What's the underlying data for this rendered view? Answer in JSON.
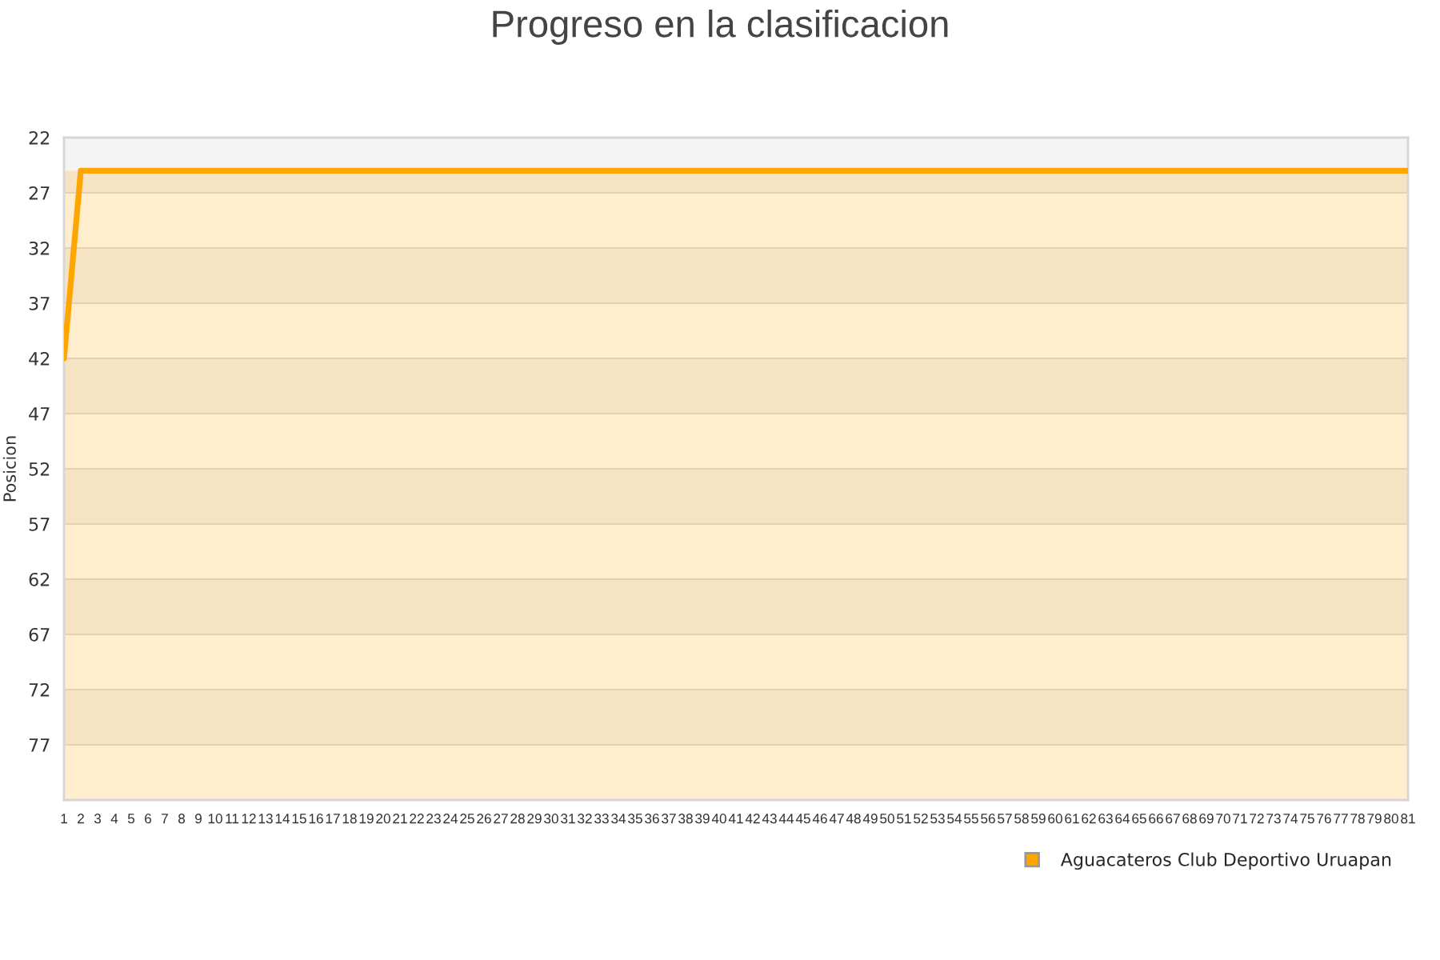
{
  "chart_data": {
    "type": "line",
    "title": "Progreso en la clasificacion",
    "ylabel": "Posicion",
    "x": [
      1,
      2,
      3,
      4,
      5,
      6,
      7,
      8,
      9,
      10,
      11,
      12,
      13,
      14,
      15,
      16,
      17,
      18,
      19,
      20,
      21,
      22,
      23,
      24,
      25,
      26,
      27,
      28,
      29,
      30,
      31,
      32,
      33,
      34,
      35,
      36,
      37,
      38,
      39,
      40,
      41,
      42,
      43,
      44,
      45,
      46,
      47,
      48,
      49,
      50,
      51,
      52,
      53,
      54,
      55,
      56,
      57,
      58,
      59,
      60,
      61,
      62,
      63,
      64,
      65,
      66,
      67,
      68,
      69,
      70,
      71,
      72,
      73,
      74,
      75,
      76,
      77,
      78,
      79,
      80,
      81
    ],
    "series": [
      {
        "name": "Aguacateros Club Deportivo Uruapan",
        "color": "#ffa500",
        "values": [
          42,
          25,
          25,
          25,
          25,
          25,
          25,
          25,
          25,
          25,
          25,
          25,
          25,
          25,
          25,
          25,
          25,
          25,
          25,
          25,
          25,
          25,
          25,
          25,
          25,
          25,
          25,
          25,
          25,
          25,
          25,
          25,
          25,
          25,
          25,
          25,
          25,
          25,
          25,
          25,
          25,
          25,
          25,
          25,
          25,
          25,
          25,
          25,
          25,
          25,
          25,
          25,
          25,
          25,
          25,
          25,
          25,
          25,
          25,
          25,
          25,
          25,
          25,
          25,
          25,
          25,
          25,
          25,
          25,
          25,
          25,
          25,
          25,
          25,
          25,
          25,
          25,
          25,
          25,
          25,
          25
        ]
      }
    ],
    "xlim": [
      1,
      81
    ],
    "xticks": [
      1,
      2,
      3,
      4,
      5,
      6,
      7,
      8,
      9,
      10,
      11,
      12,
      13,
      14,
      15,
      16,
      17,
      18,
      19,
      20,
      21,
      22,
      23,
      24,
      25,
      26,
      27,
      28,
      29,
      30,
      31,
      32,
      33,
      34,
      35,
      36,
      37,
      38,
      39,
      40,
      41,
      42,
      43,
      44,
      45,
      46,
      47,
      48,
      49,
      50,
      51,
      52,
      53,
      54,
      55,
      56,
      57,
      58,
      59,
      60,
      61,
      62,
      63,
      64,
      65,
      66,
      67,
      68,
      69,
      70,
      71,
      72,
      73,
      74,
      75,
      76,
      77,
      78,
      79,
      80,
      81
    ],
    "ylim": [
      82,
      22
    ],
    "yticks": [
      22,
      27,
      32,
      37,
      42,
      47,
      52,
      57,
      62,
      67,
      72,
      77
    ],
    "bands": [
      {
        "axis": "y",
        "from": 25,
        "to": 27,
        "color": "#f5e3c3"
      },
      {
        "axis": "y",
        "from": 27,
        "to": 32,
        "color": "#ffedcd"
      },
      {
        "axis": "y",
        "from": 32,
        "to": 37,
        "color": "#f5e3c3"
      },
      {
        "axis": "y",
        "from": 37,
        "to": 42,
        "color": "#ffedcd"
      },
      {
        "axis": "y",
        "from": 42,
        "to": 47,
        "color": "#f5e3c3"
      },
      {
        "axis": "y",
        "from": 47,
        "to": 52,
        "color": "#ffedcd"
      },
      {
        "axis": "y",
        "from": 52,
        "to": 57,
        "color": "#f5e3c3"
      },
      {
        "axis": "y",
        "from": 57,
        "to": 62,
        "color": "#ffedcd"
      },
      {
        "axis": "y",
        "from": 62,
        "to": 67,
        "color": "#f5e3c3"
      },
      {
        "axis": "y",
        "from": 67,
        "to": 72,
        "color": "#ffedcd"
      },
      {
        "axis": "y",
        "from": 72,
        "to": 77,
        "color": "#f5e3c3"
      },
      {
        "axis": "y",
        "from": 77,
        "to": 82,
        "color": "#ffedcd"
      }
    ],
    "grid": "y",
    "legend": "bottom right",
    "marker": "none",
    "line_style": "solid"
  }
}
